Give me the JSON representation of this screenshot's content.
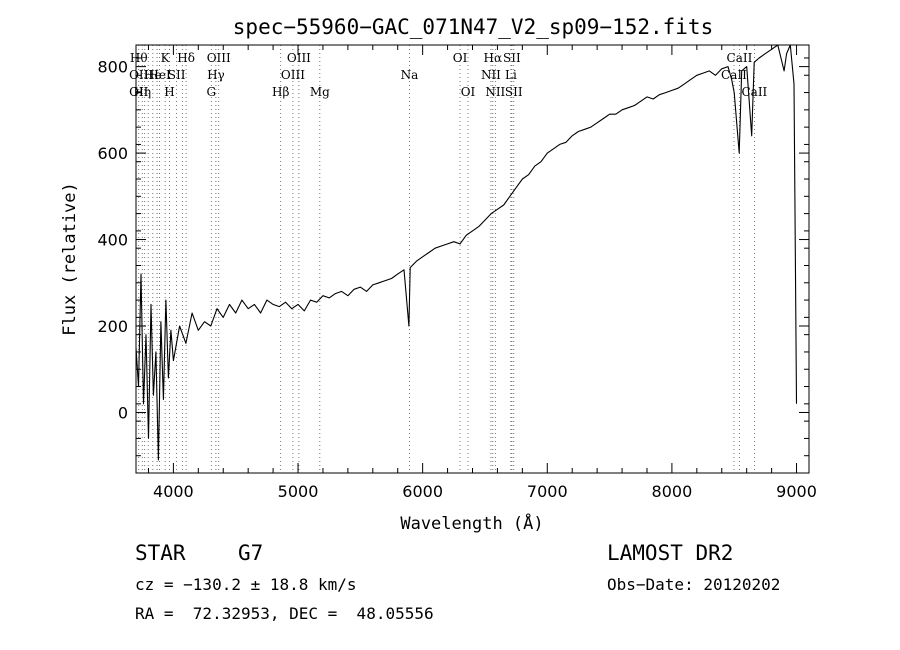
{
  "chart_data": {
    "type": "line",
    "title": "spec−55960−GAC_071N47_V2_sp09−152.fits",
    "xlabel": "Wavelength (Å)",
    "ylabel": "Flux (relative)",
    "xlim": [
      3700,
      9100
    ],
    "ylim": [
      -140,
      850
    ],
    "xticks": [
      4000,
      5000,
      6000,
      7000,
      8000,
      9000
    ],
    "yticks": [
      0,
      200,
      400,
      600,
      800
    ],
    "grid": false,
    "series": [
      {
        "x": [
          3700,
          3720,
          3740,
          3760,
          3780,
          3800,
          3820,
          3840,
          3860,
          3880,
          3900,
          3920,
          3940,
          3960,
          3980,
          4000,
          4050,
          4100,
          4150,
          4200,
          4250,
          4300,
          4350,
          4400,
          4450,
          4500,
          4550,
          4600,
          4650,
          4700,
          4750,
          4800,
          4850,
          4900,
          4950,
          5000,
          5050,
          5100,
          5150,
          5200,
          5250,
          5300,
          5350,
          5400,
          5450,
          5500,
          5550,
          5600,
          5650,
          5700,
          5750,
          5800,
          5850,
          5890,
          5900,
          5950,
          6000,
          6050,
          6100,
          6150,
          6200,
          6250,
          6300,
          6350,
          6400,
          6450,
          6500,
          6550,
          6600,
          6650,
          6700,
          6750,
          6800,
          6850,
          6900,
          6950,
          7000,
          7050,
          7100,
          7150,
          7200,
          7250,
          7300,
          7350,
          7400,
          7450,
          7500,
          7550,
          7600,
          7650,
          7700,
          7750,
          7800,
          7850,
          7900,
          7950,
          8000,
          8050,
          8100,
          8150,
          8200,
          8250,
          8300,
          8350,
          8400,
          8450,
          8480,
          8500,
          8540,
          8560,
          8600,
          8640,
          8660,
          8700,
          8750,
          8800,
          8850,
          8900,
          8920,
          8950,
          8980,
          9000
        ],
        "values": [
          150,
          60,
          320,
          20,
          180,
          -60,
          250,
          40,
          140,
          -110,
          210,
          30,
          260,
          80,
          190,
          120,
          200,
          160,
          230,
          190,
          210,
          200,
          240,
          220,
          250,
          230,
          260,
          240,
          250,
          230,
          260,
          250,
          245,
          255,
          240,
          250,
          235,
          260,
          255,
          270,
          265,
          275,
          280,
          270,
          285,
          290,
          280,
          295,
          300,
          305,
          310,
          320,
          330,
          200,
          335,
          350,
          360,
          370,
          380,
          385,
          390,
          395,
          390,
          410,
          420,
          430,
          445,
          460,
          470,
          480,
          500,
          520,
          540,
          550,
          570,
          580,
          600,
          610,
          620,
          625,
          640,
          650,
          655,
          660,
          670,
          680,
          690,
          690,
          700,
          705,
          710,
          720,
          730,
          725,
          735,
          740,
          745,
          750,
          760,
          770,
          780,
          785,
          790,
          780,
          795,
          800,
          770,
          740,
          600,
          790,
          800,
          640,
          810,
          820,
          830,
          840,
          850,
          790,
          830,
          850,
          760,
          20
        ]
      }
    ],
    "lines": [
      {
        "x": 3722,
        "labels": [
          {
            "text": "Hθ",
            "row": 0
          },
          {
            "text": "OII",
            "row": 1
          },
          {
            "text": "OII",
            "row": 2
          }
        ]
      },
      {
        "x": 3750,
        "labels": [
          {
            "text": "Hη",
            "row": 2
          }
        ]
      },
      {
        "x": 3770,
        "labels": []
      },
      {
        "x": 3798,
        "labels": []
      },
      {
        "x": 3835,
        "labels": [
          {
            "text": "He",
            "row": 1
          }
        ]
      },
      {
        "x": 3869,
        "labels": []
      },
      {
        "x": 3889,
        "labels": [
          {
            "text": "HeI",
            "row": 1
          }
        ]
      },
      {
        "x": 3934,
        "labels": [
          {
            "text": "K",
            "row": 0
          }
        ]
      },
      {
        "x": 3969,
        "labels": [
          {
            "text": "H",
            "row": 2
          }
        ]
      },
      {
        "x": 4026,
        "labels": [
          {
            "text": "SII",
            "row": 1
          }
        ]
      },
      {
        "x": 4072,
        "labels": []
      },
      {
        "x": 4102,
        "labels": [
          {
            "text": "Hδ",
            "row": 0
          }
        ]
      },
      {
        "x": 4304,
        "labels": [
          {
            "text": "G",
            "row": 2
          }
        ]
      },
      {
        "x": 4341,
        "labels": [
          {
            "text": "Hγ",
            "row": 1
          }
        ]
      },
      {
        "x": 4364,
        "labels": [
          {
            "text": "OIII",
            "row": 0
          }
        ]
      },
      {
        "x": 4861,
        "labels": [
          {
            "text": "Hβ",
            "row": 2
          }
        ]
      },
      {
        "x": 4959,
        "labels": [
          {
            "text": "OIII",
            "row": 1
          }
        ]
      },
      {
        "x": 5007,
        "labels": [
          {
            "text": "OIII",
            "row": 0
          }
        ]
      },
      {
        "x": 5175,
        "labels": [
          {
            "text": "Mg",
            "row": 2
          }
        ]
      },
      {
        "x": 5894,
        "labels": [
          {
            "text": "Na",
            "row": 1
          }
        ]
      },
      {
        "x": 6300,
        "labels": [
          {
            "text": "OI",
            "row": 0
          }
        ]
      },
      {
        "x": 6364,
        "labels": [
          {
            "text": "OI",
            "row": 2
          }
        ]
      },
      {
        "x": 6548,
        "labels": [
          {
            "text": "NII",
            "row": 1
          }
        ]
      },
      {
        "x": 6563,
        "labels": [
          {
            "text": "Hα",
            "row": 0
          }
        ]
      },
      {
        "x": 6583,
        "labels": [
          {
            "text": "NII",
            "row": 2
          }
        ]
      },
      {
        "x": 6708,
        "labels": [
          {
            "text": "Li",
            "row": 1
          }
        ]
      },
      {
        "x": 6716,
        "labels": [
          {
            "text": "SII",
            "row": 0
          }
        ]
      },
      {
        "x": 6731,
        "labels": [
          {
            "text": "SII",
            "row": 2
          }
        ]
      },
      {
        "x": 8498,
        "labels": [
          {
            "text": "CaII",
            "row": 1
          }
        ]
      },
      {
        "x": 8542,
        "labels": [
          {
            "text": "CaII",
            "row": 0
          }
        ]
      },
      {
        "x": 8662,
        "labels": [
          {
            "text": "CaII",
            "row": 2
          }
        ]
      }
    ]
  },
  "info": {
    "class": "STAR",
    "subclass": "G7",
    "survey": "LAMOST DR2",
    "cz": "cz = −130.2 ± 18.8 km/s",
    "obs_date": "Obs−Date: 20120202",
    "radec": "RA =  72.32953, DEC =  48.05556"
  }
}
